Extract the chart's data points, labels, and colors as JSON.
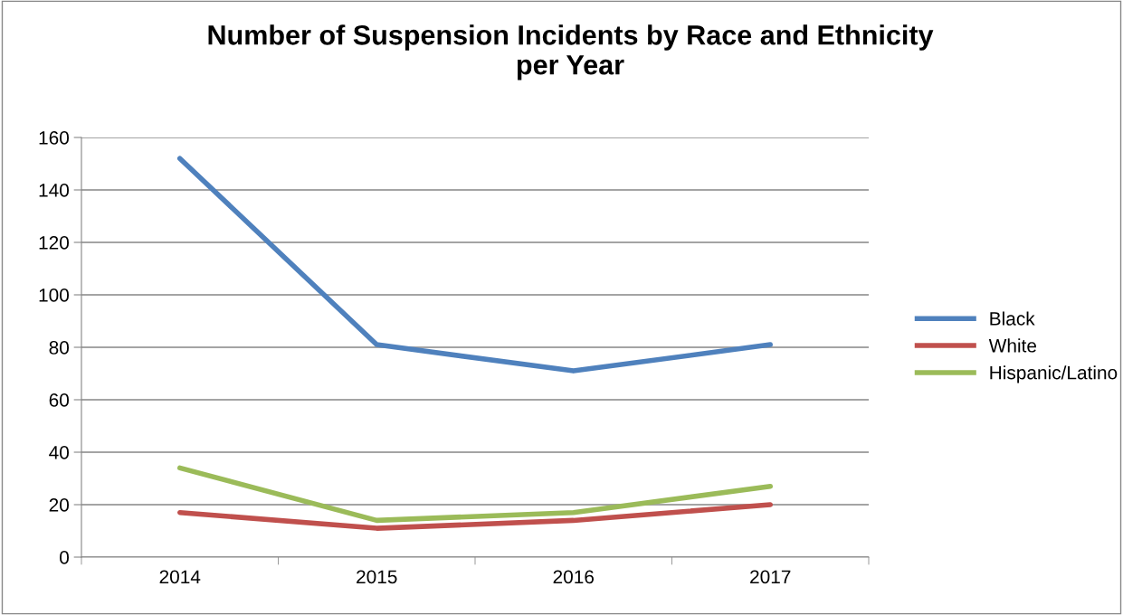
{
  "chart_data": {
    "type": "line",
    "title": "Number of Suspension Incidents by Race and Ethnicity\nper Year",
    "categories": [
      "2014",
      "2015",
      "2016",
      "2017"
    ],
    "series": [
      {
        "name": "Black",
        "color": "#4f81bd",
        "values": [
          152,
          81,
          71,
          81
        ]
      },
      {
        "name": "White",
        "color": "#c0504d",
        "values": [
          17,
          11,
          14,
          20
        ]
      },
      {
        "name": "Hispanic/Latino",
        "color": "#9bbb59",
        "values": [
          34,
          14,
          17,
          27
        ]
      }
    ],
    "ylim": [
      0,
      160
    ],
    "yticks": [
      0,
      20,
      40,
      60,
      80,
      100,
      120,
      140,
      160
    ],
    "grid": "y",
    "legend": "right",
    "marker": "none",
    "line_style": "solid"
  }
}
